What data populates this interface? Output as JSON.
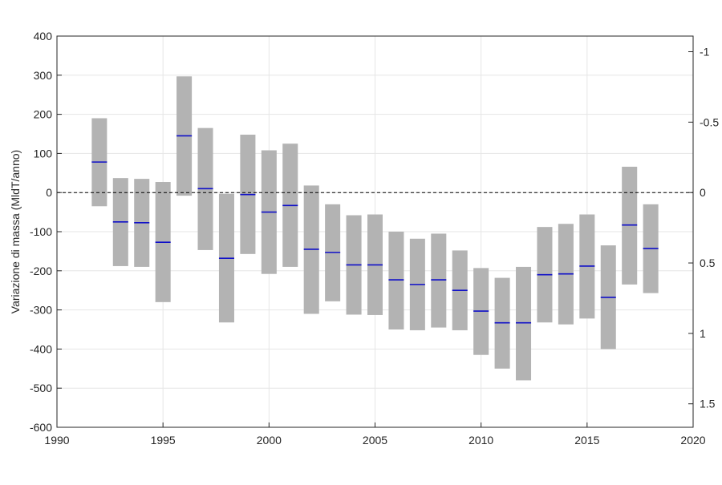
{
  "chart_data": {
    "type": "bar",
    "subtype": "floating-range-with-mean",
    "title": "",
    "xlabel": "",
    "ylabel": "Variazione di massa (MldT/anno)",
    "xlim": [
      1990,
      2020
    ],
    "ylim": [
      -600,
      400
    ],
    "x_ticks": [
      "1990",
      "1995",
      "2000",
      "2005",
      "2010",
      "2015",
      "2020"
    ],
    "y_ticks": [
      "400",
      "300",
      "200",
      "100",
      "0",
      "-100",
      "-200",
      "-300",
      "-400",
      "-500",
      "-600"
    ],
    "y2_ticks": [
      {
        "label": "-1",
        "value": 360
      },
      {
        "label": "-0.5",
        "value": 180
      },
      {
        "label": "0",
        "value": 0
      },
      {
        "label": "0.5",
        "value": -180
      },
      {
        "label": "1",
        "value": -360
      },
      {
        "label": "1.5",
        "value": -540
      }
    ],
    "grid": true,
    "zero_line": "dashed",
    "colors": {
      "range": "#b3b3b3",
      "mean": "#1010c8",
      "grid": "#e6e6e6",
      "axis": "#262626"
    },
    "x": [
      1992,
      1993,
      1994,
      1995,
      1996,
      1997,
      1998,
      1999,
      2000,
      2001,
      2002,
      2003,
      2004,
      2005,
      2006,
      2007,
      2008,
      2009,
      2010,
      2011,
      2012,
      2013,
      2014,
      2015,
      2016,
      2017,
      2018
    ],
    "low": [
      -35,
      -188,
      -190,
      -280,
      -8,
      -147,
      -332,
      -157,
      -208,
      -190,
      -310,
      -278,
      -312,
      -313,
      -350,
      -352,
      -345,
      -352,
      -415,
      -450,
      -480,
      -332,
      -337,
      -322,
      -400,
      -235,
      -257
    ],
    "high": [
      190,
      37,
      35,
      27,
      297,
      165,
      -3,
      148,
      108,
      125,
      18,
      -30,
      -58,
      -56,
      -100,
      -118,
      -105,
      -148,
      -193,
      -218,
      -190,
      -88,
      -80,
      -56,
      -135,
      66,
      -30
    ],
    "mean": [
      78,
      -75,
      -77,
      -127,
      145,
      10,
      -168,
      -5,
      -50,
      -33,
      -145,
      -153,
      -185,
      -185,
      -223,
      -235,
      -223,
      -250,
      -303,
      -333,
      -333,
      -210,
      -208,
      -188,
      -268,
      -83,
      -143
    ]
  }
}
